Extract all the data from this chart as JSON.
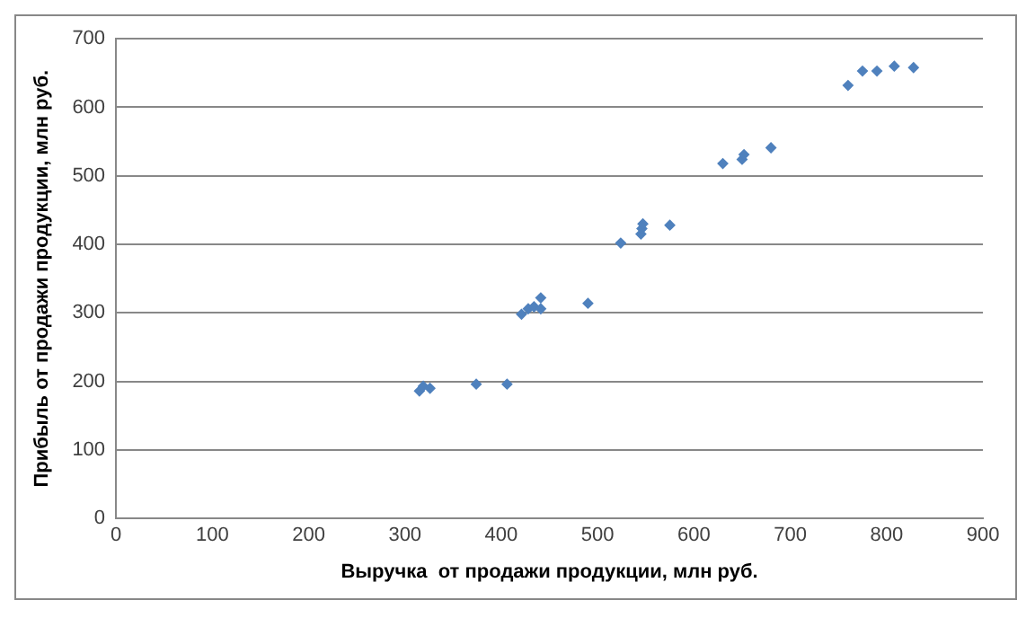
{
  "chart_data": {
    "type": "scatter",
    "xlabel": "Выручка  от продажи продукции, млн руб.",
    "ylabel": "Прибыль от продажи продукции, млн руб.",
    "x": [
      315,
      319,
      326,
      374,
      406,
      421,
      428,
      434,
      441,
      441,
      490,
      524,
      545,
      546,
      547,
      575,
      630,
      650,
      652,
      680,
      760,
      775,
      790,
      808,
      828
    ],
    "series": [
      {
        "color": "#4f81bd",
        "values": [
          186,
          193,
          190,
          196,
          196,
          298,
          306,
          309,
          306,
          322,
          314,
          402,
          415,
          423,
          430,
          428,
          518,
          524,
          531,
          541,
          632,
          653,
          653,
          660,
          658
        ]
      }
    ],
    "xlim": [
      0,
      900
    ],
    "xticks": [
      0,
      100,
      200,
      300,
      400,
      500,
      600,
      700,
      800,
      900
    ],
    "ylim": [
      0,
      700
    ],
    "yticks": [
      0,
      100,
      200,
      300,
      400,
      500,
      600,
      700
    ],
    "grid": "y",
    "legend": false,
    "marker": "diamond"
  }
}
